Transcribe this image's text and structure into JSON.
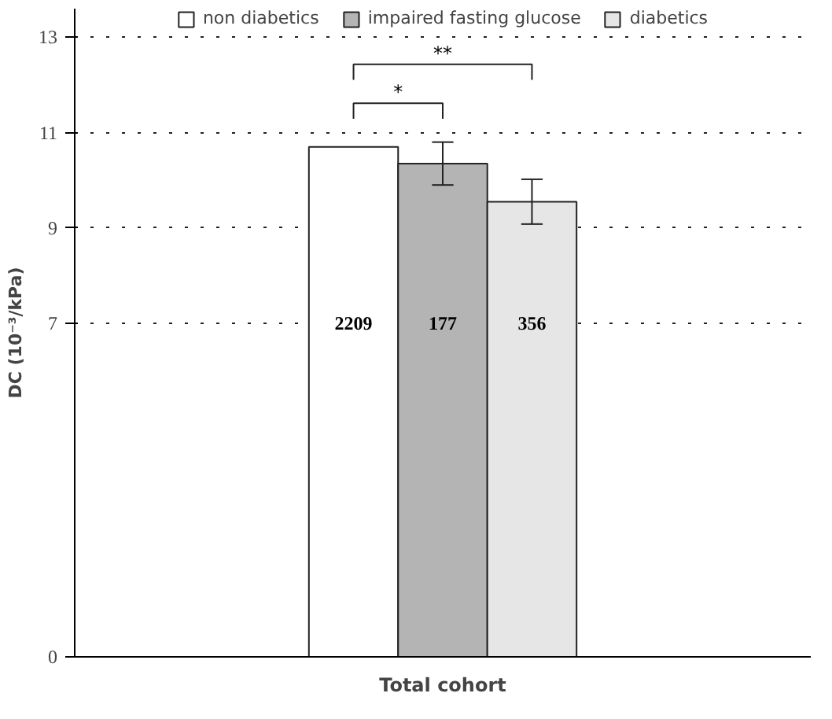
{
  "chart_data": {
    "type": "bar",
    "ylabel": "DC (10⁻³/kPa)",
    "categories": [
      "Total cohort"
    ],
    "series": [
      {
        "name": "non diabetics",
        "color": "#ffffff",
        "values": [
          10.7
        ]
      },
      {
        "name": "impaired fasting glucose",
        "color": "#b4b4b4",
        "values": [
          10.35
        ],
        "errors": [
          0.45
        ]
      },
      {
        "name": "diabetics",
        "color": "#e6e6e6",
        "values": [
          9.55
        ],
        "errors": [
          0.47
        ]
      }
    ],
    "ylim": [
      0,
      13.6
    ],
    "yticks": [
      0,
      7,
      9,
      11,
      13
    ],
    "grid": "y",
    "legend": "top",
    "annotations": [
      "2209",
      "177",
      "356",
      "*",
      "**"
    ]
  }
}
